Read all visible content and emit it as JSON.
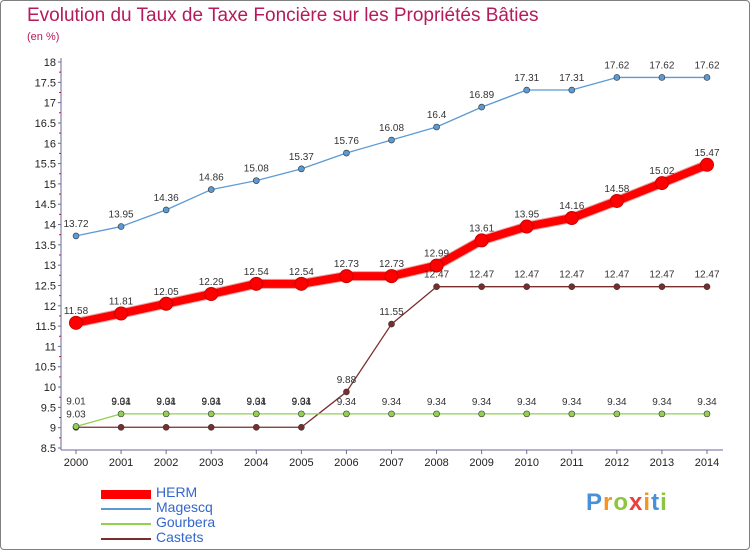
{
  "title": "Evolution du Taux de Taxe Foncière sur les Propriétés Bâties",
  "unit_label": "(en %)",
  "logo": {
    "text": "Proxiti",
    "letters": [
      "P",
      "r",
      "o",
      "x",
      "i",
      "t",
      "i"
    ],
    "colors": [
      "#4a90d9",
      "#f7941d",
      "#8cc63f",
      "#e8413c",
      "#f7941d",
      "#4a90d9",
      "#8cc63f"
    ]
  },
  "chart_data": {
    "type": "line",
    "x": [
      2000,
      2001,
      2002,
      2003,
      2004,
      2005,
      2006,
      2007,
      2008,
      2009,
      2010,
      2011,
      2012,
      2013,
      2014
    ],
    "ylim": [
      8.5,
      18
    ],
    "yticks": [
      "8.5",
      "9",
      "9.5",
      "10",
      "10.5",
      "11",
      "11.5",
      "12",
      "12.5",
      "13",
      "13.5",
      "14",
      "14.5",
      "15",
      "15.5",
      "16",
      "16.5",
      "17",
      "17.5",
      "18"
    ],
    "grid": false,
    "legend_position": "bottom-left",
    "series": [
      {
        "name": "HERM",
        "color": "#ff0000",
        "style": "thick",
        "values": [
          11.58,
          11.81,
          12.05,
          12.29,
          12.54,
          12.54,
          12.73,
          12.73,
          12.99,
          13.61,
          13.95,
          14.16,
          14.58,
          15.02,
          15.47
        ],
        "labels": [
          "11.58",
          "11.81",
          "12.05",
          "12.29",
          "12.54",
          "12.54",
          "12.73",
          "12.73",
          "12.99",
          "13.61",
          "13.95",
          "14.16",
          "14.58",
          "15.02",
          "15.47"
        ]
      },
      {
        "name": "Magescq",
        "color": "#5b9bd5",
        "style": "thin",
        "values": [
          13.72,
          13.95,
          14.36,
          14.86,
          15.08,
          15.37,
          15.76,
          16.08,
          16.4,
          16.89,
          17.31,
          17.31,
          17.62,
          17.62,
          17.62
        ],
        "labels": [
          "13.72",
          "13.95",
          "14.36",
          "14.86",
          "15.08",
          "15.37",
          "15.76",
          "16.08",
          "16.4",
          "16.89",
          "17.31",
          "17.31",
          "17.62",
          "17.62",
          "17.62"
        ]
      },
      {
        "name": "Gourbera",
        "color": "#92d050",
        "style": "thin",
        "values": [
          9.03,
          9.34,
          9.34,
          9.34,
          9.34,
          9.34,
          9.34,
          9.34,
          9.34,
          9.34,
          9.34,
          9.34,
          9.34,
          9.34,
          9.34
        ],
        "labels": [
          "9.03",
          "9.34",
          "9.34",
          "9.34",
          "9.34",
          "9.34",
          "9.34",
          "9.34",
          "9.34",
          "9.34",
          "9.34",
          "9.34",
          "9.34",
          "9.34",
          "9.34"
        ]
      },
      {
        "name": "Castets",
        "color": "#7b2d2d",
        "style": "thin",
        "values": [
          9.01,
          9.01,
          9.01,
          9.01,
          9.01,
          9.01,
          9.88,
          11.55,
          12.47,
          12.47,
          12.47,
          12.47,
          12.47,
          12.47,
          12.47
        ],
        "labels": [
          "9.01",
          "9.01",
          "9.01",
          "9.01",
          "9.01",
          "9.01",
          "9.88",
          "11.55",
          "12.47",
          "12.47",
          "12.47",
          "12.47",
          "12.47",
          "12.47",
          "12.47"
        ]
      }
    ]
  }
}
